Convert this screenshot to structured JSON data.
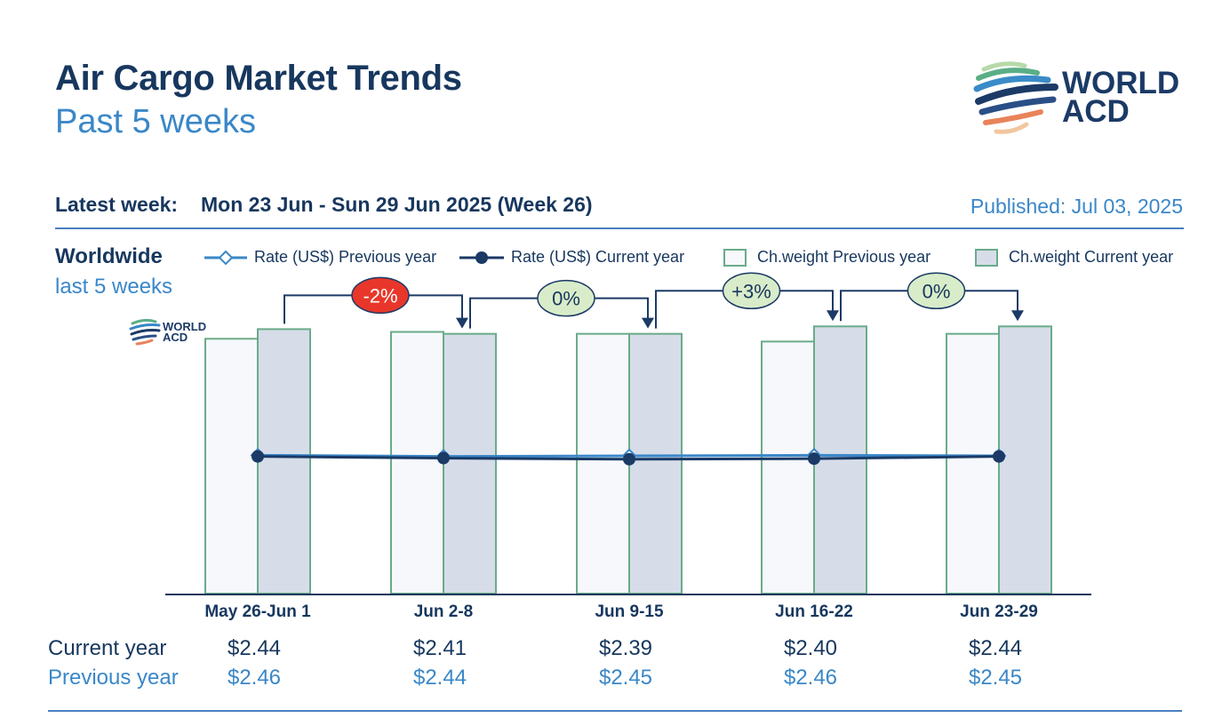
{
  "header": {
    "title": "Air Cargo Market Trends",
    "subtitle": "Past 5 weeks",
    "logo_line1": "WORLD",
    "logo_line2": "ACD",
    "latest_label": "Latest week:",
    "latest_value": "Mon 23 Jun - Sun 29 Jun 2025 (Week 26)",
    "published": "Published: Jul 03, 2025"
  },
  "section": {
    "region": "Worldwide",
    "period": "last 5 weeks"
  },
  "legend": {
    "rate_prev": "Rate (US$) Previous year",
    "rate_cur": "Rate (US$) Current year",
    "weight_prev": "Ch.weight Previous year",
    "weight_cur": "Ch.weight Current year"
  },
  "table": {
    "current_label": "Current year",
    "previous_label": "Previous year",
    "current": [
      "$2.44",
      "$2.41",
      "$2.39",
      "$2.40",
      "$2.44"
    ],
    "previous": [
      "$2.46",
      "$2.44",
      "$2.45",
      "$2.46",
      "$2.45"
    ]
  },
  "chart_data": {
    "type": "bar",
    "categories": [
      "May 26-Jun 1",
      "Jun 2-8",
      "Jun 9-15",
      "Jun 16-22",
      "Jun 23-29"
    ],
    "series": [
      {
        "name": "Ch.weight Previous year",
        "kind": "bar",
        "values": [
          0.925,
          0.95,
          0.943,
          0.915,
          0.943
        ]
      },
      {
        "name": "Ch.weight Current year",
        "kind": "bar",
        "values": [
          0.96,
          0.943,
          0.943,
          0.97,
          0.97
        ]
      },
      {
        "name": "Rate (US$) Previous year",
        "kind": "line",
        "values": [
          2.46,
          2.44,
          2.45,
          2.46,
          2.45
        ]
      },
      {
        "name": "Rate (US$) Current year",
        "kind": "line",
        "values": [
          2.44,
          2.41,
          2.39,
          2.4,
          2.44
        ]
      }
    ],
    "week_changes": [
      "-2%",
      "0%",
      "+3%",
      "0%"
    ],
    "week_change_colors": [
      "#e8372a",
      "#d9ecc9",
      "#d9ecc9",
      "#d9ecc9"
    ],
    "weight_ylim": [
      0,
      1
    ],
    "rate_ylim": [
      0,
      4.9
    ],
    "colors": {
      "bar_prev_fill": "#f6f8fc",
      "bar_cur_fill": "#d6dde9",
      "bar_stroke": "#6aab8a",
      "line_cur": "#1b3a66",
      "line_prev": "#3a87c8",
      "axis": "#17375e"
    }
  }
}
